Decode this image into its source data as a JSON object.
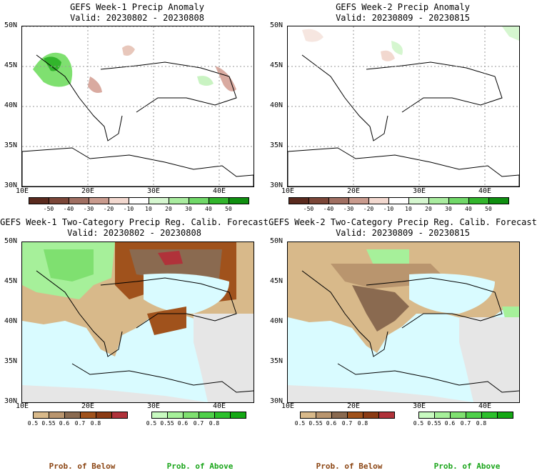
{
  "panels": [
    {
      "title_line1": "GEFS Week-1 Precip Anomaly",
      "title_line2": "Valid: 20230802 - 20230808",
      "lat_labels": [
        "50N",
        "45N",
        "40N",
        "35N",
        "30N"
      ],
      "lon_labels": [
        "10E",
        "20E",
        "30E",
        "40E"
      ],
      "field": "anomaly"
    },
    {
      "title_line1": "GEFS Week-2 Precip Anomaly",
      "title_line2": "Valid: 20230809 - 20230815",
      "lat_labels": [
        "50N",
        "45N",
        "40N",
        "35N",
        "30N"
      ],
      "lon_labels": [
        "10E",
        "20E",
        "30E",
        "40E"
      ],
      "field": "anomaly"
    },
    {
      "title_line1": "GEFS Week-1 Two-Category Precip Reg. Calib. Forecast",
      "title_line2": "Valid: 20230802 - 20230808",
      "lat_labels": [
        "50N",
        "45N",
        "40N",
        "35N",
        "30N"
      ],
      "lon_labels": [
        "10E",
        "20E",
        "30E",
        "40E"
      ],
      "field": "probability"
    },
    {
      "title_line1": "GEFS Week-2 Two-Category Precip Reg. Calib. Forecast",
      "title_line2": "Valid: 20230809 - 20230815",
      "lat_labels": [
        "50N",
        "45N",
        "40N",
        "35N",
        "30N"
      ],
      "lon_labels": [
        "10E",
        "20E",
        "30E",
        "40E"
      ],
      "field": "probability"
    }
  ],
  "anomaly_colorbar": {
    "labels": [
      "-50",
      "-40",
      "-30",
      "-20",
      "-10",
      "10",
      "20",
      "30",
      "40",
      "50"
    ],
    "colors": [
      "#5a2a1e",
      "#7b4638",
      "#a06f62",
      "#c99b8e",
      "#f2d8cf",
      "#ffffff",
      "#d5f6cf",
      "#a9ec9f",
      "#70d868",
      "#32b52c",
      "#0f8f10"
    ]
  },
  "prob_below_colorbar": {
    "labels": [
      "0.5",
      "0.55",
      "0.6",
      "0.7",
      "0.8"
    ],
    "colors": [
      "#d8b98a",
      "#b9956e",
      "#8a6a50",
      "#a0521c",
      "#8b3b14",
      "#b0323a"
    ]
  },
  "prob_above_colorbar": {
    "labels": [
      "0.5",
      "0.55",
      "0.6",
      "0.7",
      "0.8"
    ],
    "colors": [
      "#c8fac0",
      "#a6f09a",
      "#7fe070",
      "#4fd04a",
      "#2cc02c",
      "#14a814"
    ]
  },
  "legend_labels": {
    "below": "Prob. of Below",
    "above": "Prob. of Above"
  },
  "colors": {
    "sea": "#d9fbff",
    "land_gray": "#e6e6e6",
    "below_color": "#8b4513",
    "above_color": "#1aa51a"
  }
}
